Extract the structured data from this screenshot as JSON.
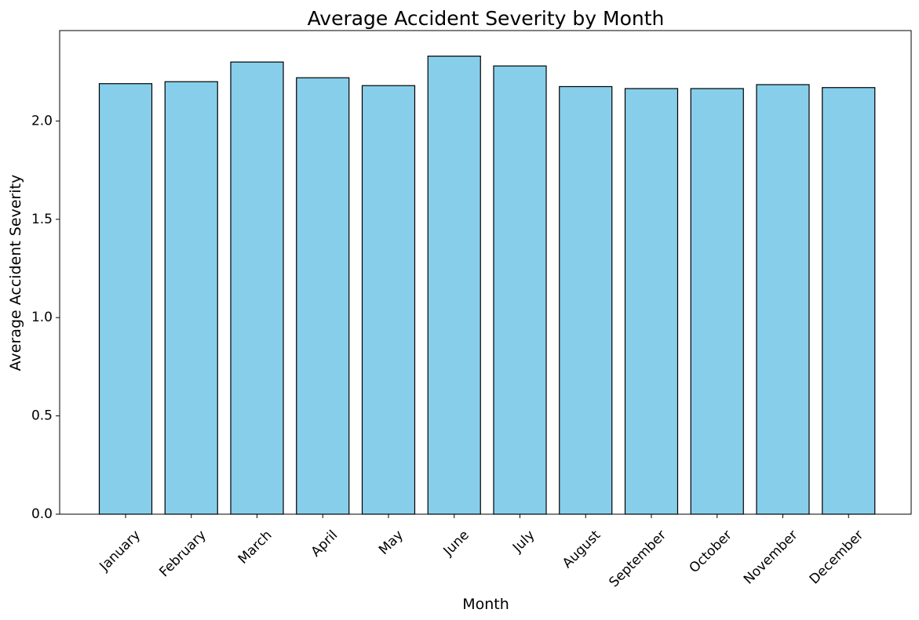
{
  "chart_data": {
    "type": "bar",
    "title": "Average Accident Severity by Month",
    "xlabel": "Month",
    "ylabel": "Average Accident Severity",
    "categories": [
      "January",
      "February",
      "March",
      "April",
      "May",
      "June",
      "July",
      "August",
      "September",
      "October",
      "November",
      "December"
    ],
    "values": [
      2.19,
      2.2,
      2.3,
      2.22,
      2.18,
      2.33,
      2.28,
      2.175,
      2.165,
      2.165,
      2.185,
      2.17
    ],
    "ylim": [
      0,
      2.46
    ],
    "yticks": [
      "0.0",
      "0.5",
      "1.0",
      "1.5",
      "2.0"
    ],
    "grid": false,
    "colors": {
      "bar_fill": "#87ceeb",
      "bar_edge": "#000000"
    }
  }
}
